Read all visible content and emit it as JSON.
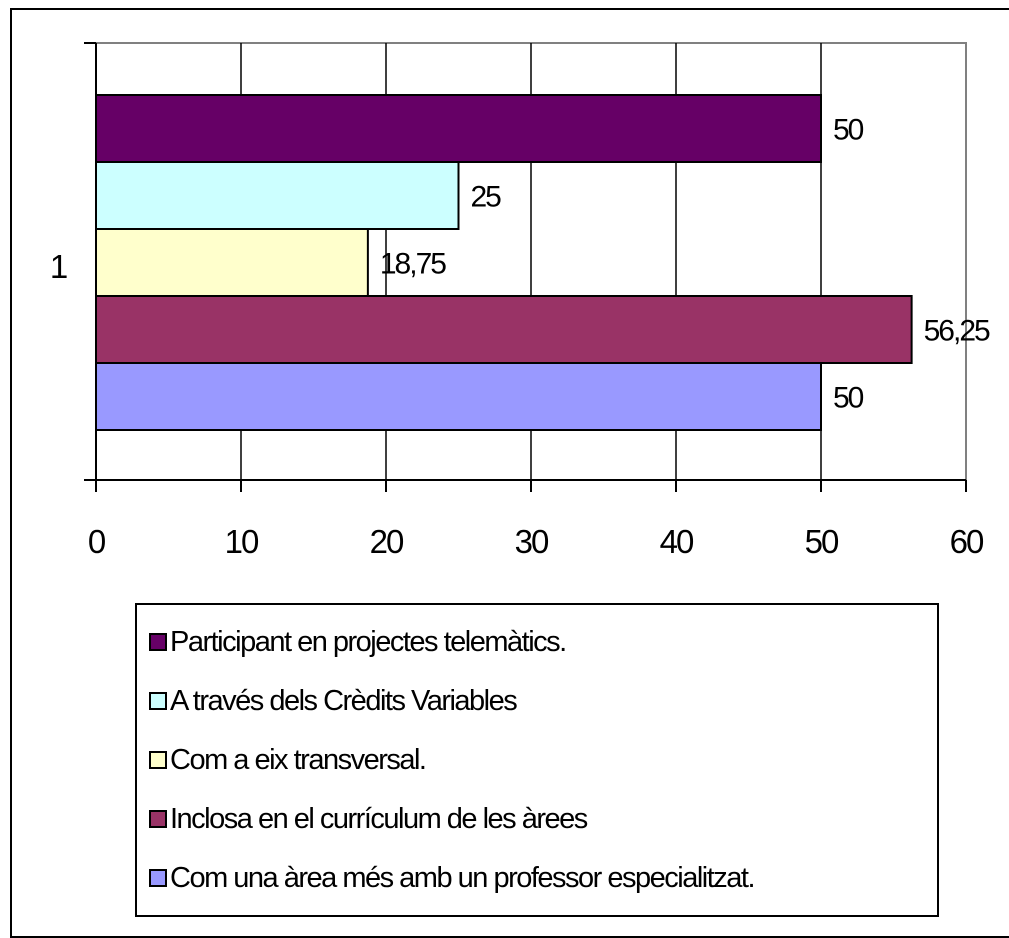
{
  "chart_data": {
    "type": "bar",
    "orientation": "horizontal",
    "categories": [
      "1"
    ],
    "series": [
      {
        "name": "Participant en projectes telemàtics.",
        "values": [
          50
        ],
        "label": "50",
        "color": "#660066"
      },
      {
        "name": "A través dels Crèdits Variables",
        "values": [
          25
        ],
        "label": "25",
        "color": "#CCFFFF"
      },
      {
        "name": "Com a eix transversal.",
        "values": [
          18.75
        ],
        "label": "18,75",
        "color": "#FFFFCC"
      },
      {
        "name": "Inclosa en el currículum de les àrees",
        "values": [
          56.25
        ],
        "label": "56,25",
        "color": "#993366"
      },
      {
        "name": "Com una àrea més amb un professor especialitzat.",
        "values": [
          50
        ],
        "label": "50",
        "color": "#9999FF"
      }
    ],
    "xlim": [
      0,
      60
    ],
    "x_ticks": [
      "0",
      "10",
      "20",
      "30",
      "40",
      "50",
      "60"
    ],
    "grid": true,
    "legend_position": "bottom"
  }
}
